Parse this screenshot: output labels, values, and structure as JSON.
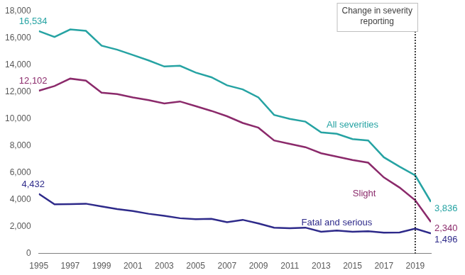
{
  "chart_data": {
    "type": "line",
    "annotations": [
      {
        "text": "Change in severity reporting",
        "x": 2019
      }
    ],
    "x": [
      1995,
      1996,
      1997,
      1998,
      1999,
      2000,
      2001,
      2002,
      2003,
      2004,
      2005,
      2006,
      2007,
      2008,
      2009,
      2010,
      2011,
      2012,
      2013,
      2014,
      2015,
      2016,
      2017,
      2018,
      2019,
      2020
    ],
    "xlim": [
      1995,
      2020
    ],
    "xticks": [
      1995,
      1997,
      1999,
      2001,
      2003,
      2005,
      2007,
      2009,
      2011,
      2013,
      2015,
      2017,
      2019
    ],
    "ylim": [
      0,
      18000
    ],
    "yticks": [
      0,
      {
        "value": 2000,
        "label": "2,000"
      },
      {
        "value": 4000,
        "label": "4,000"
      },
      {
        "value": 6000,
        "label": "6,000"
      },
      {
        "value": 8000,
        "label": "8,000"
      },
      {
        "value": 10000,
        "label": "10,000"
      },
      {
        "value": 12000,
        "label": "12,000"
      },
      {
        "value": 14000,
        "label": "14,000"
      },
      {
        "value": 16000,
        "label": "16,000"
      },
      {
        "value": 18000,
        "label": "18,000"
      }
    ],
    "grid": false,
    "series": [
      {
        "name": "All severities",
        "color": "#26a3a3",
        "values": [
          16534,
          16100,
          16650,
          16550,
          15450,
          15150,
          14750,
          14350,
          13900,
          13950,
          13450,
          13100,
          12500,
          12200,
          11600,
          10300,
          10000,
          9800,
          9000,
          8900,
          8500,
          8400,
          7150,
          6450,
          5800,
          3836
        ],
        "value_labels": [
          "16,534",
          null,
          null,
          null,
          null,
          null,
          null,
          null,
          null,
          null,
          null,
          null,
          null,
          null,
          null,
          null,
          null,
          null,
          null,
          null,
          null,
          null,
          null,
          null,
          null,
          "3,836"
        ]
      },
      {
        "name": "Slight",
        "color": "#8b2a6b",
        "values": [
          12102,
          12450,
          13000,
          12850,
          11950,
          11850,
          11600,
          11400,
          11150,
          11300,
          10950,
          10600,
          10200,
          9700,
          9350,
          8400,
          8150,
          7900,
          7450,
          7200,
          6950,
          6750,
          5650,
          4900,
          3950,
          2340
        ],
        "value_labels": [
          "12,102",
          null,
          null,
          null,
          null,
          null,
          null,
          null,
          null,
          null,
          null,
          null,
          null,
          null,
          null,
          null,
          null,
          null,
          null,
          null,
          null,
          null,
          null,
          null,
          null,
          "2,340"
        ]
      },
      {
        "name": "Fatal and serious",
        "color": "#2e2a8a",
        "values": [
          4432,
          3650,
          3670,
          3700,
          3500,
          3300,
          3150,
          2950,
          2800,
          2620,
          2550,
          2570,
          2320,
          2500,
          2230,
          1920,
          1880,
          1920,
          1610,
          1700,
          1610,
          1650,
          1550,
          1560,
          1850,
          1496
        ],
        "value_labels": [
          "4,432",
          null,
          null,
          null,
          null,
          null,
          null,
          null,
          null,
          null,
          null,
          null,
          null,
          null,
          null,
          null,
          null,
          null,
          null,
          null,
          null,
          null,
          null,
          null,
          null,
          "1,496"
        ]
      }
    ]
  }
}
